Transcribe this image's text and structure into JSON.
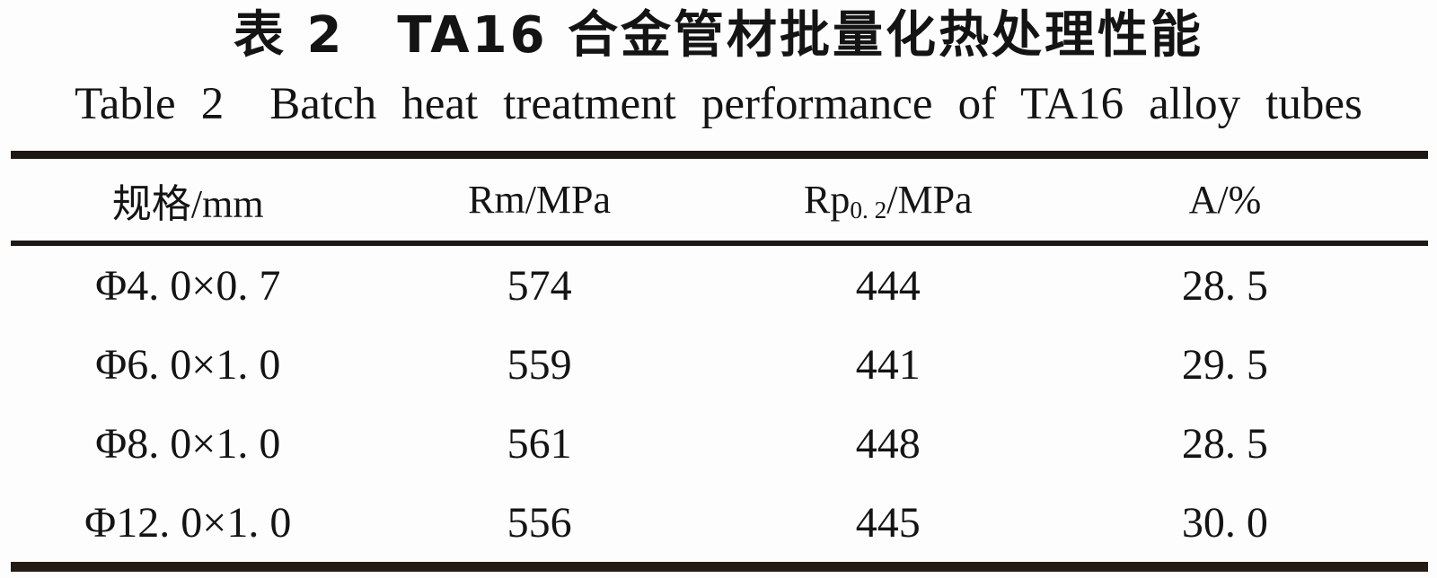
{
  "page": {
    "background": "#fdfdfd",
    "text_color": "#141414",
    "rule_color": "#201913"
  },
  "titles": {
    "chinese": "表 2 TA16 合金管材批量化热处理性能",
    "english": "Table 2 Batch heat treatment performance of TA16 alloy tubes"
  },
  "table": {
    "headers": {
      "spec": "规格/mm",
      "rm": "Rm/MPa",
      "rp_base": "Rp",
      "rp_sub": "0. 2",
      "rp_rest": "/MPa",
      "elongation": "A/%"
    },
    "rows": [
      [
        "Φ4. 0×0. 7",
        "574",
        "444",
        "28. 5"
      ],
      [
        "Φ6. 0×1. 0",
        "559",
        "441",
        "29. 5"
      ],
      [
        "Φ8. 0×1. 0",
        "561",
        "448",
        "28. 5"
      ],
      [
        "Φ12. 0×1. 0",
        "556",
        "445",
        "30. 0"
      ]
    ]
  }
}
